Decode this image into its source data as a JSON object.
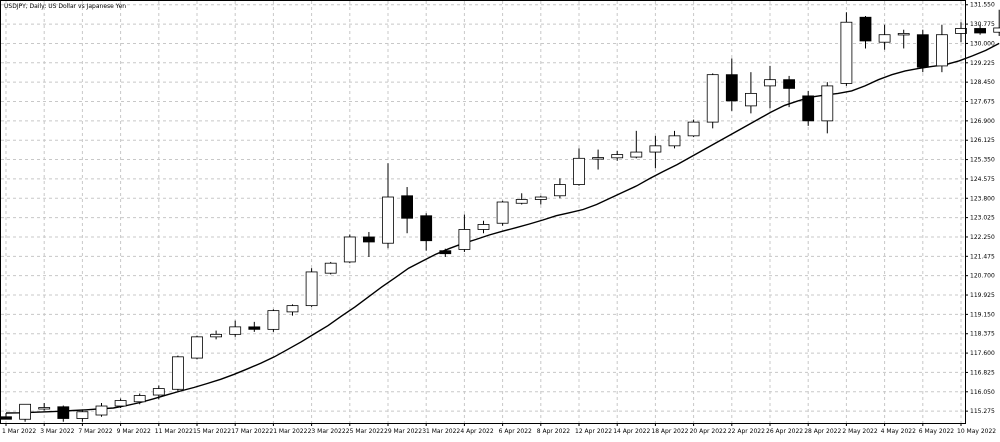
{
  "chart_data": {
    "type": "candlestick",
    "title": "USDJPY, Daily:  US Dollar vs Japanese Yen",
    "symbol": "USDJPY",
    "timeframe": "Daily",
    "ylim": [
      114.8,
      131.7
    ],
    "grid": true,
    "colors": {
      "bull_fill": "#ffffff",
      "bear_fill": "#000000",
      "outline": "#000000",
      "ma_line": "#000000",
      "grid": "#c8c8c8",
      "background": "#ffffff"
    },
    "y_ticks": [
      "131.550",
      "130.775",
      "130.000",
      "129.225",
      "128.450",
      "127.675",
      "126.900",
      "126.125",
      "125.350",
      "124.575",
      "123.800",
      "123.025",
      "122.250",
      "121.475",
      "120.700",
      "119.925",
      "119.150",
      "118.375",
      "117.600",
      "116.825",
      "116.050",
      "115.275"
    ],
    "x_ticks": [
      "1 Mar 2022",
      "3 Mar 2022",
      "7 Mar 2022",
      "9 Mar 2022",
      "11 Mar 2022",
      "15 Mar 2022",
      "17 Mar 2022",
      "21 Mar 2022",
      "23 Mar 2022",
      "25 Mar 2022",
      "29 Mar 2022",
      "31 Mar 2022",
      "4 Apr 2022",
      "6 Apr 2022",
      "8 Apr 2022",
      "12 Apr 2022",
      "14 Apr 2022",
      "18 Apr 2022",
      "20 Apr 2022",
      "22 Apr 2022",
      "26 Apr 2022",
      "28 Apr 2022",
      "2 May 2022",
      "4 May 2022",
      "6 May 2022",
      "10 May 2022"
    ],
    "x_tick_indices": [
      0,
      2,
      4,
      6,
      8,
      10,
      12,
      14,
      16,
      18,
      20,
      22,
      24,
      26,
      28,
      30,
      32,
      34,
      36,
      38,
      40,
      42,
      44,
      46,
      48,
      50
    ],
    "candles": [
      {
        "o": 115.05,
        "h": 115.2,
        "l": 114.95,
        "c": 114.95
      },
      {
        "o": 114.95,
        "h": 115.55,
        "l": 114.85,
        "c": 115.55
      },
      {
        "o": 115.4,
        "h": 115.6,
        "l": 115.3,
        "c": 115.42
      },
      {
        "o": 115.45,
        "h": 115.5,
        "l": 114.85,
        "c": 114.98
      },
      {
        "o": 114.98,
        "h": 115.3,
        "l": 114.85,
        "c": 115.25
      },
      {
        "o": 115.12,
        "h": 115.6,
        "l": 115.05,
        "c": 115.48
      },
      {
        "o": 115.48,
        "h": 115.78,
        "l": 115.4,
        "c": 115.7
      },
      {
        "o": 115.65,
        "h": 115.98,
        "l": 115.55,
        "c": 115.9
      },
      {
        "o": 115.92,
        "h": 116.3,
        "l": 115.75,
        "c": 116.18
      },
      {
        "o": 116.15,
        "h": 117.5,
        "l": 116.05,
        "c": 117.45
      },
      {
        "o": 117.4,
        "h": 118.3,
        "l": 117.35,
        "c": 118.25
      },
      {
        "o": 118.25,
        "h": 118.5,
        "l": 118.15,
        "c": 118.35
      },
      {
        "o": 118.35,
        "h": 118.9,
        "l": 118.25,
        "c": 118.65
      },
      {
        "o": 118.65,
        "h": 118.85,
        "l": 118.45,
        "c": 118.55
      },
      {
        "o": 118.55,
        "h": 119.35,
        "l": 118.45,
        "c": 119.3
      },
      {
        "o": 119.25,
        "h": 119.55,
        "l": 119.1,
        "c": 119.5
      },
      {
        "o": 119.5,
        "h": 121.0,
        "l": 119.45,
        "c": 120.85
      },
      {
        "o": 120.8,
        "h": 121.25,
        "l": 120.75,
        "c": 121.2
      },
      {
        "o": 121.25,
        "h": 122.35,
        "l": 121.2,
        "c": 122.25
      },
      {
        "o": 122.25,
        "h": 122.45,
        "l": 121.45,
        "c": 122.05
      },
      {
        "o": 122.0,
        "h": 125.2,
        "l": 121.8,
        "c": 123.85
      },
      {
        "o": 123.9,
        "h": 124.25,
        "l": 122.4,
        "c": 123.0
      },
      {
        "o": 123.1,
        "h": 123.2,
        "l": 121.7,
        "c": 122.1
      },
      {
        "o": 121.7,
        "h": 121.78,
        "l": 121.45,
        "c": 121.58
      },
      {
        "o": 121.75,
        "h": 123.15,
        "l": 121.65,
        "c": 122.55
      },
      {
        "o": 122.55,
        "h": 122.9,
        "l": 122.4,
        "c": 122.75
      },
      {
        "o": 122.8,
        "h": 123.7,
        "l": 122.7,
        "c": 123.65
      },
      {
        "o": 123.6,
        "h": 124.0,
        "l": 123.55,
        "c": 123.75
      },
      {
        "o": 123.75,
        "h": 123.9,
        "l": 123.55,
        "c": 123.85
      },
      {
        "o": 123.9,
        "h": 124.6,
        "l": 123.8,
        "c": 124.35
      },
      {
        "o": 124.35,
        "h": 125.8,
        "l": 124.3,
        "c": 125.4
      },
      {
        "o": 125.4,
        "h": 125.75,
        "l": 124.95,
        "c": 125.43
      },
      {
        "o": 125.42,
        "h": 125.7,
        "l": 125.3,
        "c": 125.55
      },
      {
        "o": 125.45,
        "h": 126.5,
        "l": 125.4,
        "c": 125.65
      },
      {
        "o": 125.65,
        "h": 126.3,
        "l": 125.0,
        "c": 125.9
      },
      {
        "o": 125.9,
        "h": 126.5,
        "l": 125.8,
        "c": 126.3
      },
      {
        "o": 126.3,
        "h": 126.95,
        "l": 126.25,
        "c": 126.85
      },
      {
        "o": 126.85,
        "h": 128.8,
        "l": 126.6,
        "c": 128.75
      },
      {
        "o": 128.75,
        "h": 129.4,
        "l": 127.3,
        "c": 127.7
      },
      {
        "o": 127.5,
        "h": 128.85,
        "l": 127.2,
        "c": 128.0
      },
      {
        "o": 128.3,
        "h": 129.1,
        "l": 127.4,
        "c": 128.55
      },
      {
        "o": 128.55,
        "h": 128.7,
        "l": 127.45,
        "c": 128.2
      },
      {
        "o": 127.9,
        "h": 128.1,
        "l": 126.7,
        "c": 126.9
      },
      {
        "o": 126.9,
        "h": 128.45,
        "l": 126.4,
        "c": 128.3
      },
      {
        "o": 128.4,
        "h": 131.25,
        "l": 128.3,
        "c": 130.85
      },
      {
        "o": 131.05,
        "h": 131.1,
        "l": 129.8,
        "c": 130.1
      },
      {
        "o": 130.05,
        "h": 130.75,
        "l": 129.75,
        "c": 130.35
      },
      {
        "o": 130.35,
        "h": 130.55,
        "l": 129.8,
        "c": 130.4
      },
      {
        "o": 130.35,
        "h": 130.55,
        "l": 128.85,
        "c": 129.05
      },
      {
        "o": 129.1,
        "h": 130.75,
        "l": 128.85,
        "c": 130.35
      },
      {
        "o": 130.4,
        "h": 130.85,
        "l": 130.05,
        "c": 130.6
      },
      {
        "o": 130.6,
        "h": 130.75,
        "l": 130.35,
        "c": 130.42
      },
      {
        "o": 130.45,
        "h": 131.35,
        "l": 130.3,
        "c": 130.62
      }
    ],
    "ma": [
      115.2,
      115.21,
      115.23,
      115.25,
      115.27,
      115.3,
      115.33,
      115.37,
      115.4,
      115.5,
      115.62,
      115.77,
      115.93,
      116.08,
      116.22,
      116.38,
      116.55,
      116.75,
      116.97,
      117.2,
      117.45,
      117.75,
      118.05,
      118.38,
      118.7,
      119.08,
      119.45,
      119.85,
      120.25,
      120.62,
      121.0,
      121.28,
      121.55,
      121.78,
      121.98,
      122.15,
      122.33,
      122.48,
      122.62,
      122.77,
      122.93,
      123.1,
      123.22,
      123.35,
      123.55,
      123.8,
      124.05,
      124.3,
      124.6,
      124.88,
      125.15,
      125.45,
      125.75,
      126.05,
      126.35,
      126.65,
      126.95,
      127.25,
      127.52,
      127.7,
      127.85,
      127.93,
      128.0,
      128.1,
      128.3,
      128.55,
      128.75,
      128.9,
      129.0,
      129.08,
      129.15,
      129.3,
      129.5,
      129.72,
      130.0
    ]
  }
}
